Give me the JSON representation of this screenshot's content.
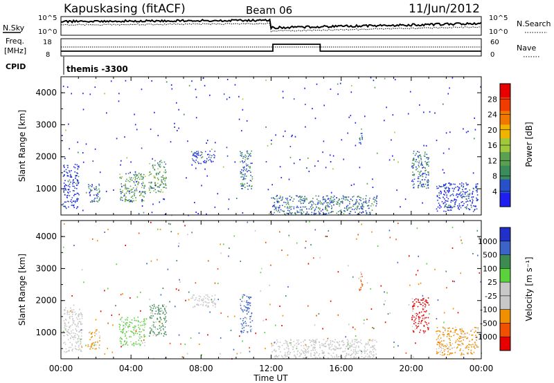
{
  "header": {
    "station": "Kapuskasing (fitACF)",
    "beam": "Beam 06",
    "date": "11/Jun/2012"
  },
  "summary": {
    "nsky_label": "N.Sky",
    "nsky_ticks": [
      "10^5",
      "10^0"
    ],
    "nsearch_label": "N.Search",
    "nsearch_ticks": [
      "10^5",
      "10^0"
    ],
    "freq_label_1": "Freq.",
    "freq_label_2": "[MHz]",
    "freq_ticks": [
      "18",
      "8"
    ],
    "nave_label": "Nave",
    "nave_ticks": [
      "60",
      "0"
    ],
    "cpid_label": "CPID",
    "cpid_value": "themis -3300"
  },
  "colors": {
    "power": [
      "#1e1ef0",
      "#2850c8",
      "#3a8c5a",
      "#5aa050",
      "#a0c83c",
      "#f0b400",
      "#f07800",
      "#f03c00",
      "#e60000"
    ],
    "velocity": [
      "#e60000",
      "#f05000",
      "#f09000",
      "#c8c8c8",
      "#c8c8c8",
      "#5ad23c",
      "#3c8c50",
      "#3c64c8",
      "#2030c8"
    ],
    "velocity_ground": "#c8c8c8"
  },
  "chart_data": [
    {
      "type": "heatmap",
      "name": "Power",
      "xlabel": "",
      "ylabel": "Slant Range [km]",
      "x_range_hours": [
        0,
        24
      ],
      "y_range_km": [
        180,
        4500
      ],
      "y_ticks": [
        "4000",
        "3000",
        "2000",
        "1000"
      ],
      "y_tick_values": [
        4000,
        3000,
        2000,
        1000
      ],
      "colorbar_label": "Power [dB]",
      "colorbar_ticks": [
        "28",
        "24",
        "20",
        "16",
        "12",
        "8",
        "4"
      ],
      "colorbar_range": [
        0,
        30
      ],
      "echo_regions": [
        {
          "t0": 0.1,
          "t1": 1.0,
          "r0": 400,
          "r1": 1800,
          "level": 8
        },
        {
          "t0": 1.5,
          "t1": 2.2,
          "r0": 600,
          "r1": 1200,
          "level": 12
        },
        {
          "t0": 3.3,
          "t1": 4.8,
          "r0": 600,
          "r1": 1500,
          "level": 16
        },
        {
          "t0": 5.0,
          "t1": 6.0,
          "r0": 900,
          "r1": 1900,
          "level": 14
        },
        {
          "t0": 7.4,
          "t1": 8.8,
          "r0": 1800,
          "r1": 2200,
          "level": 8
        },
        {
          "t0": 10.2,
          "t1": 10.9,
          "r0": 1000,
          "r1": 2200,
          "level": 10
        },
        {
          "t0": 12.0,
          "t1": 18.0,
          "r0": 200,
          "r1": 800,
          "level": 12
        },
        {
          "t0": 17.0,
          "t1": 17.2,
          "r0": 2300,
          "r1": 2900,
          "level": 12
        },
        {
          "t0": 20.0,
          "t1": 21.0,
          "r0": 1000,
          "r1": 2200,
          "level": 12
        },
        {
          "t0": 21.4,
          "t1": 23.8,
          "r0": 300,
          "r1": 1200,
          "level": 8
        }
      ]
    },
    {
      "type": "heatmap",
      "name": "Velocity",
      "xlabel": "Time UT",
      "ylabel": "Slant Range [km]",
      "x_range_hours": [
        0,
        24
      ],
      "x_ticks": [
        "00:00",
        "04:00",
        "08:00",
        "12:00",
        "16:00",
        "20:00",
        "00:00"
      ],
      "x_tick_values": [
        0,
        4,
        8,
        12,
        16,
        20,
        24
      ],
      "y_range_km": [
        180,
        4500
      ],
      "y_ticks": [
        "4000",
        "3000",
        "2000",
        "1000"
      ],
      "y_tick_values": [
        4000,
        3000,
        2000,
        1000
      ],
      "colorbar_label": "Velocity [m s⁻¹]",
      "colorbar_ticks": [
        "1000",
        "500",
        "100",
        "25",
        "-25",
        "-100",
        "-500",
        "-1000"
      ],
      "echo_regions": [
        {
          "t0": 0.1,
          "t1": 1.2,
          "r0": 400,
          "r1": 1800,
          "v": 0
        },
        {
          "t0": 1.5,
          "t1": 2.2,
          "r0": 500,
          "r1": 1100,
          "v": -200
        },
        {
          "t0": 3.3,
          "t1": 4.8,
          "r0": 600,
          "r1": 1500,
          "v": 200
        },
        {
          "t0": 5.0,
          "t1": 6.0,
          "r0": 900,
          "r1": 1900,
          "v": 400
        },
        {
          "t0": 7.4,
          "t1": 8.8,
          "r0": 1800,
          "r1": 2200,
          "v": 0
        },
        {
          "t0": 10.2,
          "t1": 10.9,
          "r0": 1000,
          "r1": 2200,
          "v": 800
        },
        {
          "t0": 12.0,
          "t1": 18.0,
          "r0": 200,
          "r1": 800,
          "v": 0
        },
        {
          "t0": 17.0,
          "t1": 17.2,
          "r0": 2300,
          "r1": 2900,
          "v": -300
        },
        {
          "t0": 20.0,
          "t1": 21.0,
          "r0": 1000,
          "r1": 2100,
          "v": -700
        },
        {
          "t0": 21.4,
          "t1": 23.8,
          "r0": 300,
          "r1": 1200,
          "v": -200
        }
      ]
    }
  ]
}
